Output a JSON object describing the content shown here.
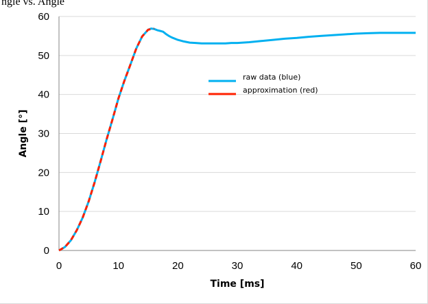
{
  "header_text": "ngle vs. Angle",
  "chart_data": {
    "type": "line",
    "xlabel": "Time [ms]",
    "ylabel": "Angle [°]",
    "xlim": [
      0,
      60
    ],
    "ylim": [
      0,
      60
    ],
    "x_ticks": [
      0,
      10,
      20,
      30,
      40,
      50,
      60
    ],
    "y_ticks": [
      0,
      10,
      20,
      30,
      40,
      50,
      60
    ],
    "grid": "horizontal",
    "legend_position": "center-right",
    "series": [
      {
        "name": "raw data (blue)",
        "color": "#00b0f0",
        "style": "solid",
        "x": [
          0,
          1,
          2,
          3,
          4,
          5,
          6,
          7,
          8,
          9,
          10,
          11,
          12,
          13,
          14,
          15,
          15.5,
          16,
          16.5,
          17,
          17.5,
          18,
          18.5,
          19,
          20,
          21,
          22,
          23,
          24,
          25,
          26,
          27,
          28,
          29,
          30,
          32,
          34,
          36,
          38,
          40,
          42,
          44,
          46,
          48,
          50,
          52,
          54,
          55,
          56,
          58,
          60
        ],
        "y": [
          0,
          0.9,
          2.6,
          5.2,
          8.5,
          12.6,
          17.5,
          22.9,
          28.4,
          33.6,
          39.0,
          43.5,
          47.6,
          51.8,
          54.9,
          56.6,
          56.9,
          56.8,
          56.5,
          56.3,
          56.1,
          55.5,
          55.0,
          54.6,
          54.0,
          53.6,
          53.3,
          53.2,
          53.1,
          53.1,
          53.1,
          53.1,
          53.1,
          53.2,
          53.2,
          53.4,
          53.7,
          54.0,
          54.3,
          54.5,
          54.8,
          55.0,
          55.2,
          55.4,
          55.6,
          55.7,
          55.8,
          55.8,
          55.8,
          55.8,
          55.8
        ]
      },
      {
        "name": "approximation (red)",
        "color": "#ff2000",
        "style": "dashed",
        "x": [
          0,
          1,
          2,
          3,
          4,
          5,
          6,
          7,
          8,
          9,
          10,
          11,
          12,
          13,
          14,
          15,
          16
        ],
        "y": [
          0,
          0.9,
          2.6,
          5.2,
          8.5,
          12.6,
          17.5,
          22.9,
          28.4,
          33.6,
          39.0,
          43.5,
          47.6,
          51.8,
          54.9,
          56.6,
          56.9
        ]
      }
    ]
  }
}
